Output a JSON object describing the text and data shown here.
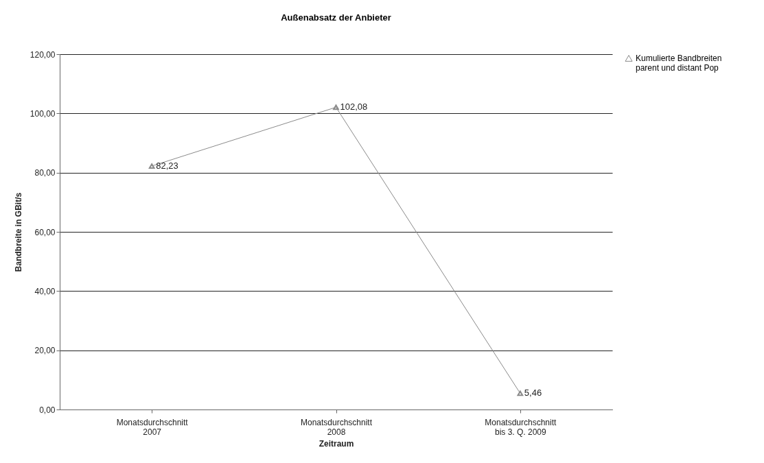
{
  "chart_data": {
    "type": "line",
    "title": "Außenabsatz der Anbieter",
    "xlabel": "Zeitraum",
    "ylabel": "Bandbreite in GBit/s",
    "categories": [
      "Monatsdurchschnitt\n2007",
      "Monatsdurchschnitt\n2008",
      "Monatsdurchschnitt\nbis 3. Q. 2009"
    ],
    "series": [
      {
        "name": "Kumulierte Bandbreiten\nparent und distant Pop",
        "color": "#8a8a8a",
        "values": [
          82.23,
          102.08,
          5.46
        ],
        "value_labels": [
          "82,23",
          "102,08",
          "5,46"
        ]
      }
    ],
    "ylim": [
      0,
      120
    ],
    "yticks": [
      {
        "value": 0,
        "label": "0,00"
      },
      {
        "value": 20,
        "label": "20,00"
      },
      {
        "value": 40,
        "label": "40,00"
      },
      {
        "value": 60,
        "label": "60,00"
      },
      {
        "value": 80,
        "label": "80,00"
      },
      {
        "value": 100,
        "label": "100,00"
      },
      {
        "value": 120,
        "label": "120,00"
      }
    ],
    "grid": "y",
    "legend": "right",
    "marker": "triangle",
    "line_style": "solid"
  }
}
